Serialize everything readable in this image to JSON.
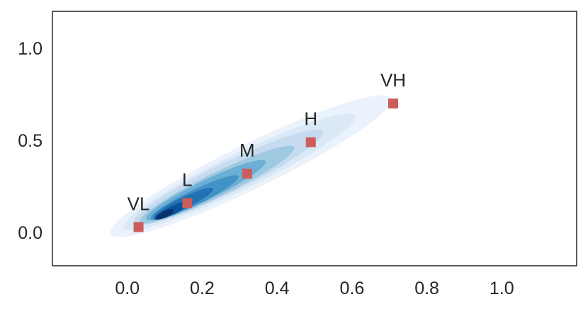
{
  "chart_data": {
    "type": "scatter",
    "title": "",
    "xlabel": "",
    "ylabel": "",
    "xlim": [
      -0.2,
      1.2
    ],
    "ylim": [
      -0.18,
      1.2
    ],
    "x_ticks": [
      "0.0",
      "0.2",
      "0.4",
      "0.6",
      "0.8",
      "1.0"
    ],
    "y_ticks": [
      "0.0",
      "0.5",
      "1.0"
    ],
    "grid": false,
    "background": "density contour (kernel density estimate) along the diagonal",
    "density_colormap": "Blues",
    "marker_color": "#cd5c5c",
    "marker": "square",
    "points": [
      {
        "label": "VL",
        "x": 0.03,
        "y": 0.03
      },
      {
        "label": "L",
        "x": 0.16,
        "y": 0.16
      },
      {
        "label": "M",
        "x": 0.32,
        "y": 0.32
      },
      {
        "label": "H",
        "x": 0.49,
        "y": 0.49
      },
      {
        "label": "VH",
        "x": 0.71,
        "y": 0.7
      }
    ]
  }
}
